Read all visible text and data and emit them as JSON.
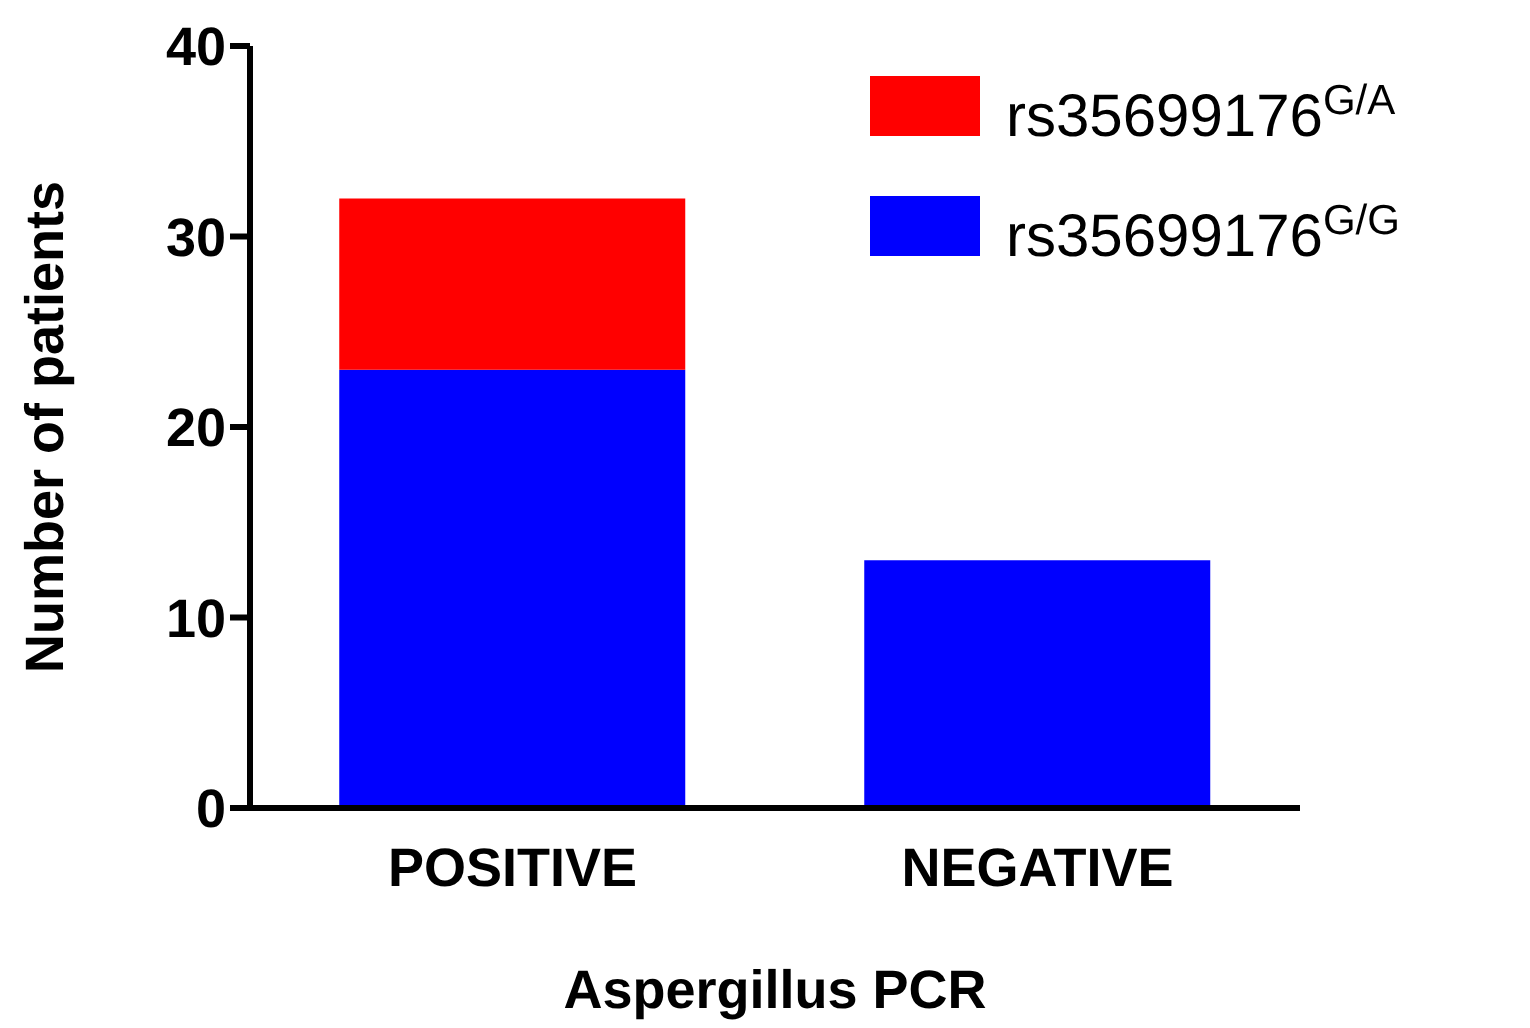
{
  "chart_data": {
    "type": "bar",
    "stacked": true,
    "categories": [
      "POSITIVE",
      "NEGATIVE"
    ],
    "series": [
      {
        "name": "rs35699176$^{G/G}$",
        "color": "#0000ff",
        "values": [
          23,
          13
        ]
      },
      {
        "name": "rs35699176$^{G/A}$",
        "color": "#ff0000",
        "values": [
          9,
          0
        ]
      }
    ],
    "xlabel": "Aspergillus PCR",
    "ylabel": "Number of patients",
    "ylim": [
      0,
      40
    ],
    "yticks": [
      0,
      10,
      20,
      30,
      40
    ],
    "grid": false,
    "legend": "top right"
  }
}
